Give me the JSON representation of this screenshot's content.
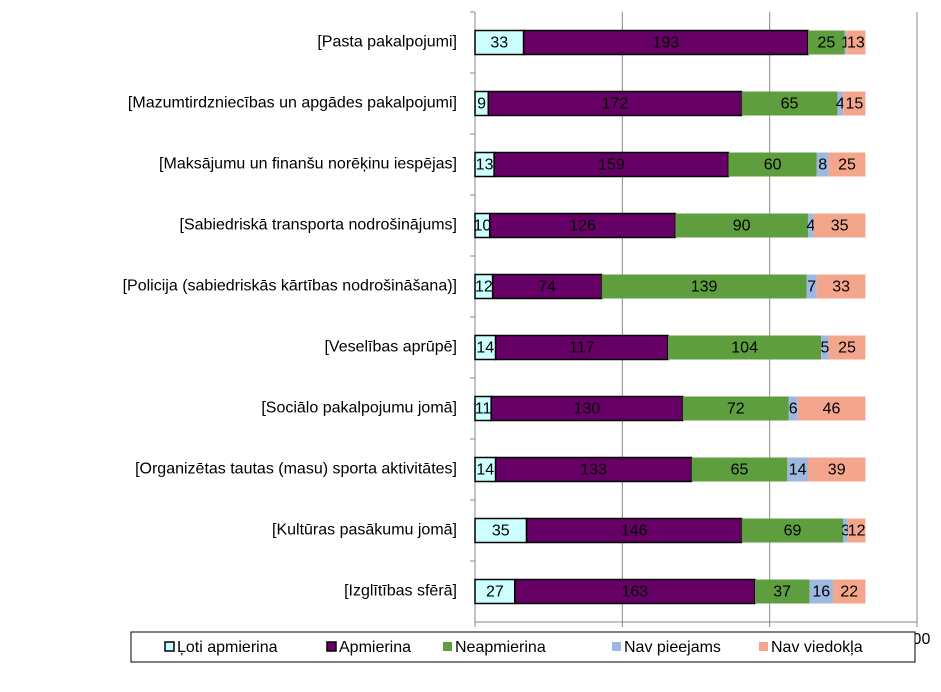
{
  "chart_data": {
    "type": "stacked-barh",
    "categories": [
      "[Pasta pakalpojumi]",
      "[Mazumtirdzniecības un apgādes pakalpojumi]",
      "[Maksājumu un finanšu norēķinu iespējas]",
      "[Sabiedriskā transporta nodrošinājums]",
      "[Policija (sabiedriskās kārtības nodrošināšana)]",
      "[Veselības aprūpē]",
      "[Sociālo pakalpojumu jomā]",
      "[Organizētas tautas (masu) sporta aktivitātes]",
      "[Kultūras pasākumu jomā]",
      "[Izglītības sfērā]"
    ],
    "series": [
      {
        "name": "Ļoti apmierina",
        "color": "#ccffff",
        "values": [
          33,
          9,
          13,
          10,
          12,
          14,
          11,
          14,
          35,
          27
        ]
      },
      {
        "name": "Apmierina",
        "color": "#660066",
        "values": [
          193,
          172,
          159,
          126,
          74,
          117,
          130,
          133,
          146,
          163
        ]
      },
      {
        "name": "Neapmierina",
        "color": "#5f9e3f",
        "values": [
          25,
          65,
          60,
          90,
          139,
          104,
          72,
          65,
          69,
          37
        ]
      },
      {
        "name": "Nav pieejams",
        "color": "#9fb8e0",
        "values": [
          1,
          4,
          8,
          4,
          7,
          5,
          6,
          14,
          3,
          16
        ]
      },
      {
        "name": "Nav viedokļa",
        "color": "#f4a68c",
        "values": [
          13,
          15,
          25,
          35,
          33,
          25,
          46,
          39,
          12,
          22
        ]
      }
    ],
    "xlim": [
      0,
      300
    ],
    "xticks": [
      0,
      100,
      200,
      300
    ],
    "grid": true,
    "legend": "bottom"
  }
}
